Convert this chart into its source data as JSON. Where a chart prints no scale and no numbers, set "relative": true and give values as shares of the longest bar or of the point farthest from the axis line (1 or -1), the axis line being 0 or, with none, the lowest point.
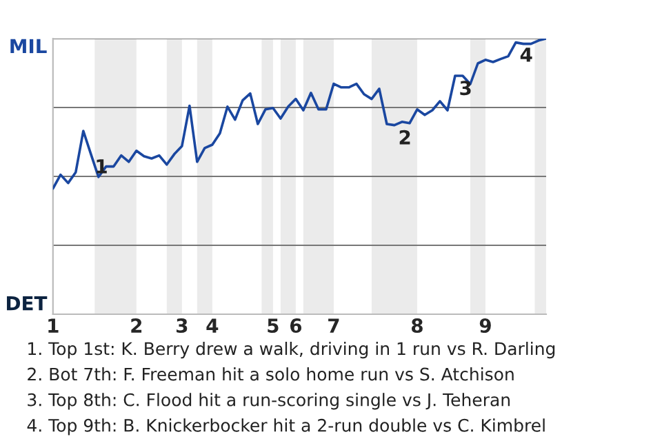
{
  "chart_data": {
    "type": "line",
    "relative": true,
    "categories": [
      "1",
      null,
      null,
      null,
      null,
      null,
      null,
      null,
      null,
      null,
      null,
      "2",
      null,
      null,
      null,
      null,
      null,
      "3",
      null,
      null,
      null,
      "4",
      null,
      null,
      null,
      null,
      null,
      null,
      null,
      "5",
      null,
      null,
      "6",
      null,
      null,
      null,
      null,
      "7",
      null,
      null,
      null,
      null,
      null,
      null,
      null,
      null,
      null,
      null,
      "8",
      null,
      null,
      null,
      null,
      null,
      null,
      null,
      null,
      "9",
      null,
      null,
      null,
      null,
      null,
      null,
      null,
      null
    ],
    "series": [
      {
        "color": "#1a47a0",
        "values": [
          0.456,
          0.506,
          0.476,
          0.515,
          0.665,
          0.581,
          0.498,
          0.536,
          0.536,
          0.576,
          0.553,
          0.593,
          0.573,
          0.565,
          0.576,
          0.543,
          0.581,
          0.61,
          0.756,
          0.553,
          0.603,
          0.615,
          0.656,
          0.753,
          0.706,
          0.776,
          0.801,
          0.69,
          0.743,
          0.748,
          0.71,
          0.753,
          0.781,
          0.74,
          0.803,
          0.743,
          0.743,
          0.836,
          0.823,
          0.823,
          0.836,
          0.798,
          0.781,
          0.818,
          0.69,
          0.686,
          0.698,
          0.693,
          0.743,
          0.723,
          0.74,
          0.773,
          0.74,
          0.865,
          0.865,
          0.835,
          0.91,
          0.923,
          0.915,
          0.926,
          0.936,
          0.986,
          0.981,
          0.981,
          0.993,
          1
        ]
      }
    ],
    "ref_lines": [
      {
        "axis": "y",
        "value": 0.25,
        "color": "#777777"
      },
      {
        "axis": "y",
        "value": 0.5,
        "color": "#777777"
      },
      {
        "axis": "y",
        "value": 0.75,
        "color": "#777777"
      },
      {
        "axis": "y",
        "value": 1,
        "color": "#777777"
      }
    ],
    "annotations": [
      "MIL",
      "DET",
      "1",
      "2",
      "3",
      "4",
      "1. Top 1st: K. Berry drew a walk, driving in 1 run vs R. Darling",
      "2. Bot 7th: F. Freeman hit a solo home run vs S. Atchison",
      "3. Top 8th: C. Flood hit a run-scoring single vs J. Teheran",
      "4. Top 9th: B. Knickerbocker hit a 2-run double vs C. Kimbrel"
    ]
  }
}
